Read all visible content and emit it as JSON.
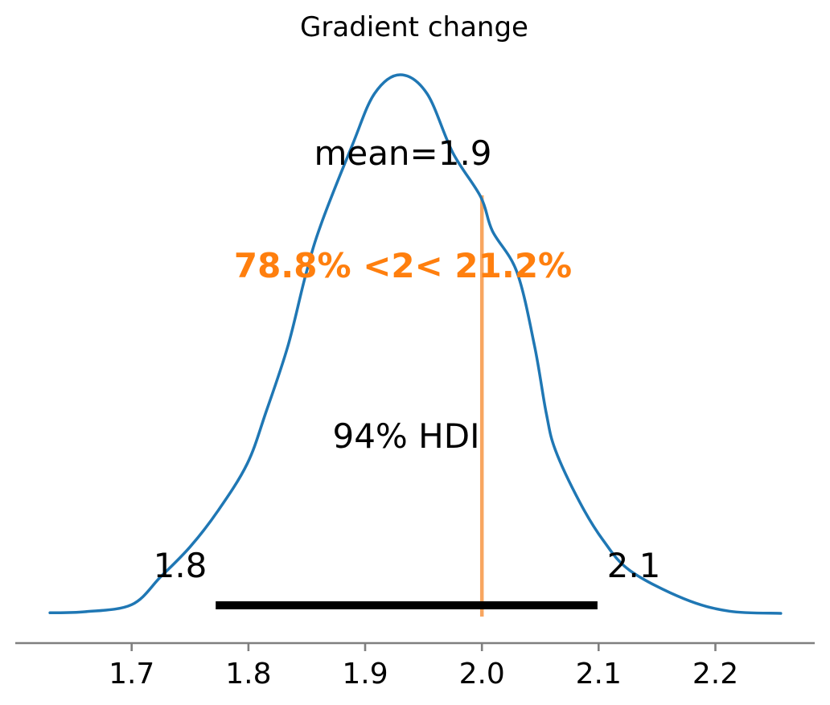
{
  "figure": {
    "background": "#ffffff"
  },
  "chart_data": {
    "type": "area",
    "kind": "posterior-density-kde",
    "title": "Gradient change",
    "xlabel": "",
    "ylabel": "",
    "grid": false,
    "legend": false,
    "xlim": [
      1.62,
      2.27
    ],
    "xticks": [
      1.7,
      1.8,
      1.9,
      2.0,
      2.1,
      2.2
    ],
    "xtick_labels": [
      "1.7",
      "1.8",
      "1.9",
      "2.0",
      "2.1",
      "2.2"
    ],
    "curve": {
      "x": [
        1.63,
        1.66,
        1.7,
        1.725,
        1.75,
        1.774,
        1.799,
        1.815,
        1.834,
        1.849,
        1.862,
        1.889,
        1.908,
        1.93,
        1.953,
        1.975,
        1.999,
        2.009,
        2.03,
        2.045,
        2.055,
        2.063,
        2.084,
        2.104,
        2.127,
        2.173,
        2.212,
        2.256
      ],
      "density": [
        0.004,
        0.006,
        0.019,
        0.071,
        0.126,
        0.193,
        0.28,
        0.375,
        0.499,
        0.629,
        0.722,
        0.87,
        0.965,
        1.0,
        0.965,
        0.856,
        0.774,
        0.711,
        0.635,
        0.499,
        0.375,
        0.305,
        0.208,
        0.138,
        0.082,
        0.03,
        0.007,
        0.003
      ]
    },
    "annotations": {
      "mean_label": "mean=1.9",
      "mean_value": 1.9,
      "ref_val_label": "78.8% <2< 21.2%",
      "ref_value": 2,
      "pct_below": "78.8%",
      "pct_above": "21.2%",
      "hdi_label": "94% HDI",
      "hdi_prob": 0.94,
      "hdi_lower_label": "1.8",
      "hdi_upper_label": "2.1",
      "hdi_interval": [
        1.772,
        2.099
      ]
    },
    "colors": {
      "curve": "#1f77b4",
      "ref_line": "#f8a660",
      "ref_text": "#ff7f0e",
      "hdi_bar": "#000000",
      "axis": "#7f7f7f",
      "text": "#000000"
    }
  }
}
